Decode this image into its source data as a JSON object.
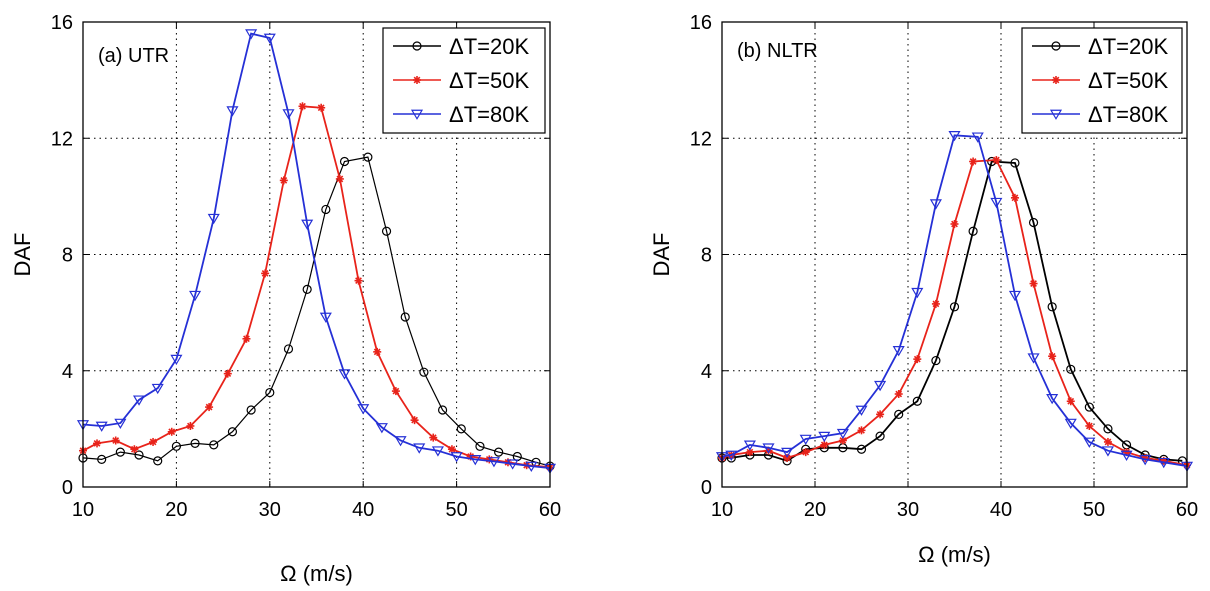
{
  "chart_data": [
    {
      "type": "line",
      "title": "(a) UTR",
      "xlabel": "Ω (m/s)",
      "ylabel": "DAF",
      "xlim": [
        10,
        60
      ],
      "ylim": [
        0,
        16
      ],
      "xticks": [
        10,
        20,
        30,
        40,
        50,
        60
      ],
      "yticks": [
        0,
        4,
        8,
        12,
        16
      ],
      "grid": true,
      "legend_position": "top-right",
      "series": [
        {
          "name": "ΔT=20K",
          "color": "#000000",
          "marker": "circle",
          "x": [
            10,
            12,
            14,
            16,
            18,
            20,
            22,
            24,
            26,
            28,
            30,
            32,
            34,
            36,
            38,
            40.5,
            42.5,
            44.5,
            46.5,
            48.5,
            50.5,
            52.5,
            54.5,
            56.5,
            58.5,
            60
          ],
          "y": [
            1.0,
            0.95,
            1.2,
            1.1,
            0.9,
            1.4,
            1.5,
            1.45,
            1.9,
            2.65,
            3.25,
            4.75,
            6.8,
            9.55,
            11.2,
            11.35,
            8.8,
            5.85,
            3.95,
            2.65,
            2.0,
            1.4,
            1.2,
            1.05,
            0.85,
            0.72
          ]
        },
        {
          "name": "ΔT=50K",
          "color": "#e8231a",
          "marker": "star",
          "x": [
            10,
            11.5,
            13.5,
            15.5,
            17.5,
            19.5,
            21.5,
            23.5,
            25.5,
            27.5,
            29.5,
            31.5,
            33.5,
            35.5,
            37.5,
            39.5,
            41.5,
            43.5,
            45.5,
            47.5,
            49.5,
            51.5,
            53.5,
            55.5,
            57.5,
            60
          ],
          "y": [
            1.25,
            1.5,
            1.6,
            1.3,
            1.55,
            1.9,
            2.1,
            2.75,
            3.9,
            5.1,
            7.35,
            10.55,
            13.1,
            13.05,
            10.6,
            7.1,
            4.65,
            3.3,
            2.3,
            1.7,
            1.3,
            1.05,
            0.95,
            0.85,
            0.75,
            0.68
          ]
        },
        {
          "name": "ΔT=80K",
          "color": "#2530d6",
          "marker": "triangle-down",
          "x": [
            10,
            12,
            14,
            16,
            18,
            20,
            22,
            24,
            26,
            28,
            30,
            32,
            34,
            36,
            38,
            40,
            42,
            44,
            46,
            48,
            50,
            52,
            54,
            56,
            58,
            60
          ],
          "y": [
            2.15,
            2.1,
            2.2,
            3.0,
            3.4,
            4.4,
            6.6,
            9.25,
            12.95,
            15.6,
            15.45,
            12.85,
            9.05,
            5.85,
            3.9,
            2.7,
            2.05,
            1.6,
            1.35,
            1.25,
            1.05,
            0.95,
            0.88,
            0.8,
            0.72,
            0.65
          ]
        }
      ]
    },
    {
      "type": "line",
      "title": "(b) NLTR",
      "xlabel": "Ω (m/s)",
      "ylabel": "DAF",
      "xlim": [
        10,
        60
      ],
      "ylim": [
        0,
        16
      ],
      "xticks": [
        10,
        20,
        30,
        40,
        50,
        60
      ],
      "yticks": [
        0,
        4,
        8,
        12,
        16
      ],
      "grid": true,
      "legend_position": "top-right",
      "series": [
        {
          "name": "ΔT=20K",
          "color": "#000000",
          "marker": "circle",
          "x": [
            10,
            11,
            13,
            15,
            17,
            19,
            21,
            23,
            25,
            27,
            29,
            31,
            33,
            35,
            37,
            39,
            41.5,
            43.5,
            45.5,
            47.5,
            49.5,
            51.5,
            53.5,
            55.5,
            57.5,
            59.5
          ],
          "y": [
            1.0,
            1.0,
            1.1,
            1.1,
            0.9,
            1.3,
            1.35,
            1.35,
            1.3,
            1.75,
            2.5,
            2.95,
            4.35,
            6.2,
            8.8,
            11.2,
            11.15,
            9.1,
            6.2,
            4.05,
            2.75,
            2.0,
            1.45,
            1.1,
            0.95,
            0.9
          ]
        },
        {
          "name": "ΔT=50K",
          "color": "#e8231a",
          "marker": "star",
          "x": [
            10,
            11,
            13,
            15,
            17,
            19,
            21,
            23,
            25,
            27,
            29,
            31,
            33,
            35,
            37,
            39.5,
            41.5,
            43.5,
            45.5,
            47.5,
            49.5,
            51.5,
            53.5,
            55.5,
            57.5,
            60
          ],
          "y": [
            1.0,
            1.1,
            1.2,
            1.25,
            1.0,
            1.2,
            1.45,
            1.6,
            1.95,
            2.5,
            3.2,
            4.4,
            6.3,
            9.05,
            11.2,
            11.25,
            9.95,
            7.0,
            4.5,
            2.95,
            2.1,
            1.55,
            1.2,
            1.0,
            0.9,
            0.75
          ]
        },
        {
          "name": "ΔT=80K",
          "color": "#2530d6",
          "marker": "triangle-down",
          "x": [
            10,
            11,
            13,
            15,
            17,
            19,
            21,
            23,
            25,
            27,
            29,
            31,
            33,
            35,
            37.5,
            39.5,
            41.5,
            43.5,
            45.5,
            47.5,
            49.5,
            51.5,
            53.5,
            55.5,
            57.5,
            60
          ],
          "y": [
            1.05,
            1.1,
            1.45,
            1.35,
            1.2,
            1.65,
            1.75,
            1.85,
            2.65,
            3.5,
            4.7,
            6.7,
            9.75,
            12.1,
            12.05,
            9.8,
            6.6,
            4.45,
            3.05,
            2.2,
            1.55,
            1.25,
            1.1,
            0.95,
            0.85,
            0.72
          ]
        }
      ]
    }
  ]
}
